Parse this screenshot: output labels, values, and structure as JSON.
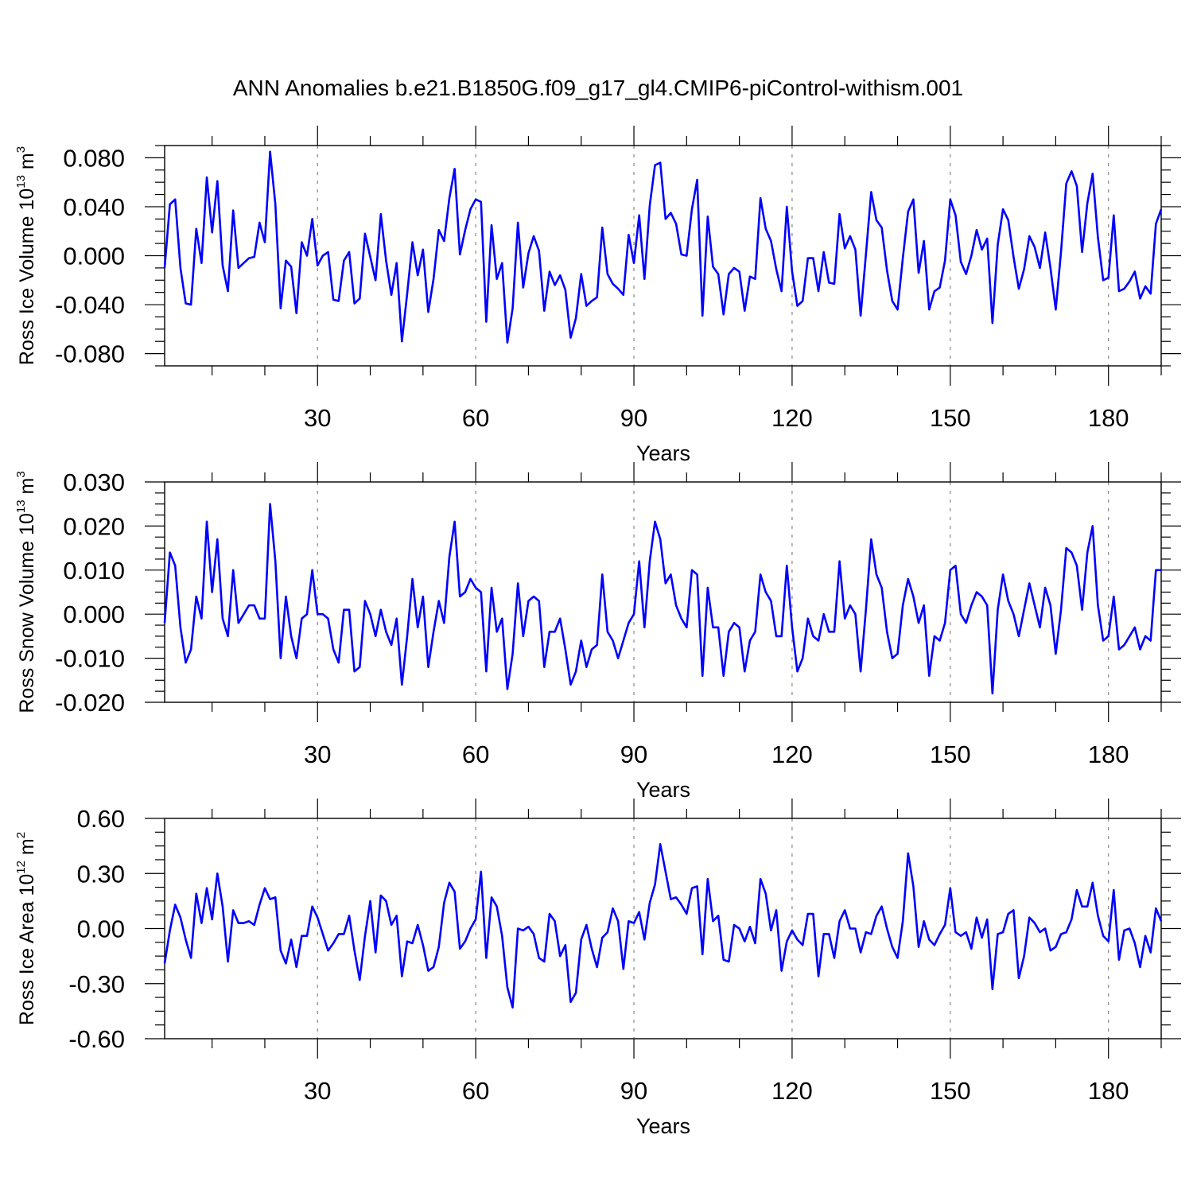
{
  "title": "ANN Anomalies b.e21.B1850G.f09_g17_gl4.CMIP6-piControl-withism.001",
  "colors": {
    "line": "#0000ff",
    "axis": "#000000",
    "grid": "#888888",
    "background": "#ffffff"
  },
  "chart_data": [
    {
      "type": "line",
      "ylabel": {
        "text": "Ross Ice Volume 10",
        "exp": "13",
        "unit": " m",
        "unit_exp": "3"
      },
      "xlabel": "Years",
      "xlim": [
        1,
        190
      ],
      "ylim": [
        -0.09,
        0.09
      ],
      "xticks": [
        30,
        60,
        90,
        120,
        150,
        180
      ],
      "xtick_labels": [
        "30",
        "60",
        "90",
        "120",
        "150",
        "180"
      ],
      "yticks": [
        -0.08,
        -0.04,
        0.0,
        0.04,
        0.08
      ],
      "ytick_labels": [
        "-0.080",
        "-0.040",
        "0.000",
        "0.040",
        "0.080"
      ],
      "grid": "vertical dashed at x ticks",
      "series": [
        {
          "name": "Ross Ice Volume",
          "values": [
            -0.01,
            0.042,
            0.046,
            -0.01,
            -0.039,
            -0.04,
            0.022,
            -0.006,
            0.064,
            0.019,
            0.061,
            -0.008,
            -0.029,
            0.037,
            -0.01,
            -0.006,
            -0.002,
            -0.001,
            0.027,
            0.011,
            0.085,
            0.042,
            -0.043,
            -0.004,
            -0.009,
            -0.047,
            0.011,
            0.0,
            0.03,
            -0.008,
            0.0,
            0.003,
            -0.036,
            -0.037,
            -0.004,
            0.003,
            -0.039,
            -0.035,
            0.018,
            -0.001,
            -0.02,
            0.034,
            -0.004,
            -0.032,
            -0.006,
            -0.07,
            -0.031,
            0.011,
            -0.016,
            0.005,
            -0.046,
            -0.019,
            0.021,
            0.012,
            0.047,
            0.071,
            0.001,
            0.021,
            0.038,
            0.046,
            0.044,
            -0.054,
            0.025,
            -0.019,
            -0.006,
            -0.071,
            -0.043,
            0.027,
            -0.026,
            0.002,
            0.016,
            0.004,
            -0.045,
            -0.013,
            -0.024,
            -0.016,
            -0.028,
            -0.067,
            -0.051,
            -0.015,
            -0.041,
            -0.037,
            -0.034,
            0.023,
            -0.015,
            -0.023,
            -0.027,
            -0.032,
            0.017,
            -0.006,
            0.033,
            -0.019,
            0.041,
            0.074,
            0.076,
            0.03,
            0.035,
            0.026,
            0.001,
            0.0,
            0.038,
            0.062,
            -0.049,
            0.032,
            -0.009,
            -0.015,
            -0.048,
            -0.015,
            -0.01,
            -0.013,
            -0.045,
            -0.017,
            -0.019,
            0.047,
            0.022,
            0.012,
            -0.011,
            -0.029,
            0.04,
            -0.013,
            -0.041,
            -0.037,
            -0.002,
            -0.002,
            -0.029,
            0.003,
            -0.022,
            -0.023,
            0.034,
            0.006,
            0.016,
            0.005,
            -0.049,
            0.001,
            0.052,
            0.029,
            0.023,
            -0.012,
            -0.037,
            -0.044,
            -0.002,
            0.036,
            0.046,
            -0.014,
            0.012,
            -0.044,
            -0.029,
            -0.026,
            -0.004,
            0.046,
            0.033,
            -0.005,
            -0.015,
            0.0,
            0.021,
            0.005,
            0.014,
            -0.055,
            0.009,
            0.038,
            0.029,
            -0.001,
            -0.027,
            -0.011,
            0.016,
            0.007,
            -0.01,
            0.019,
            -0.01,
            -0.044,
            0.003,
            0.059,
            0.069,
            0.057,
            0.003,
            0.043,
            0.067,
            0.015,
            -0.02,
            -0.018,
            0.033,
            -0.029,
            -0.027,
            -0.021,
            -0.013,
            -0.035,
            -0.025,
            -0.031,
            0.026,
            0.038
          ]
        }
      ]
    },
    {
      "type": "line",
      "ylabel": {
        "text": "Ross Snow Volume 10",
        "exp": "13",
        "unit": " m",
        "unit_exp": "3"
      },
      "xlabel": "Years",
      "xlim": [
        1,
        190
      ],
      "ylim": [
        -0.02,
        0.03
      ],
      "xticks": [
        30,
        60,
        90,
        120,
        150,
        180
      ],
      "xtick_labels": [
        "30",
        "60",
        "90",
        "120",
        "150",
        "180"
      ],
      "yticks": [
        -0.02,
        -0.01,
        0.0,
        0.01,
        0.02,
        0.03
      ],
      "ytick_labels": [
        "-0.020",
        "-0.010",
        "0.000",
        "0.010",
        "0.020",
        "0.030"
      ],
      "grid": "vertical dashed at x ticks",
      "series": [
        {
          "name": "Ross Snow Volume",
          "values": [
            -0.002,
            0.014,
            0.011,
            -0.003,
            -0.011,
            -0.008,
            0.004,
            -0.001,
            0.021,
            0.005,
            0.017,
            -0.001,
            -0.005,
            0.01,
            -0.002,
            0.0,
            0.002,
            0.002,
            -0.001,
            -0.001,
            0.025,
            0.012,
            -0.01,
            0.004,
            -0.005,
            -0.01,
            -0.001,
            0.0,
            0.01,
            0.0,
            0.0,
            -0.001,
            -0.008,
            -0.011,
            0.001,
            0.001,
            -0.013,
            -0.012,
            0.003,
            0.0,
            -0.005,
            0.001,
            -0.004,
            -0.007,
            -0.001,
            -0.016,
            -0.005,
            0.008,
            -0.003,
            0.004,
            -0.012,
            -0.004,
            0.003,
            -0.002,
            0.013,
            0.021,
            0.004,
            0.005,
            0.008,
            0.006,
            0.005,
            -0.013,
            0.006,
            -0.004,
            -0.001,
            -0.017,
            -0.009,
            0.007,
            -0.005,
            0.003,
            0.004,
            0.003,
            -0.012,
            -0.004,
            -0.004,
            -0.001,
            -0.008,
            -0.016,
            -0.013,
            -0.006,
            -0.012,
            -0.008,
            -0.007,
            0.009,
            -0.004,
            -0.006,
            -0.01,
            -0.006,
            -0.002,
            0.0,
            0.012,
            -0.003,
            0.012,
            0.021,
            0.017,
            0.007,
            0.009,
            0.002,
            -0.001,
            -0.003,
            0.01,
            0.009,
            -0.014,
            0.006,
            -0.003,
            -0.003,
            -0.014,
            -0.004,
            -0.002,
            -0.003,
            -0.013,
            -0.006,
            -0.004,
            0.009,
            0.005,
            0.003,
            -0.005,
            -0.005,
            0.011,
            -0.003,
            -0.013,
            -0.01,
            -0.001,
            -0.005,
            -0.006,
            0.0,
            -0.004,
            -0.004,
            0.012,
            -0.001,
            0.002,
            0.0,
            -0.013,
            0.001,
            0.017,
            0.009,
            0.006,
            -0.004,
            -0.01,
            -0.009,
            0.002,
            0.008,
            0.004,
            -0.002,
            0.002,
            -0.014,
            -0.005,
            -0.006,
            -0.002,
            0.01,
            0.011,
            0.0,
            -0.002,
            0.002,
            0.005,
            0.004,
            0.002,
            -0.018,
            0.001,
            0.009,
            0.003,
            0.0,
            -0.005,
            0.001,
            0.007,
            0.002,
            -0.003,
            0.006,
            0.002,
            -0.009,
            0.001,
            0.015,
            0.014,
            0.011,
            0.001,
            0.014,
            0.02,
            0.002,
            -0.006,
            -0.005,
            0.004,
            -0.008,
            -0.007,
            -0.005,
            -0.003,
            -0.008,
            -0.005,
            -0.006,
            0.01,
            0.01
          ]
        }
      ]
    },
    {
      "type": "line",
      "ylabel": {
        "text": "Ross Ice Area 10",
        "exp": "12",
        "unit": " m",
        "unit_exp": "2"
      },
      "xlabel": "Years",
      "xlim": [
        1,
        190
      ],
      "ylim": [
        -0.6,
        0.6
      ],
      "xticks": [
        30,
        60,
        90,
        120,
        150,
        180
      ],
      "xtick_labels": [
        "30",
        "60",
        "90",
        "120",
        "150",
        "180"
      ],
      "yticks": [
        -0.6,
        -0.3,
        0.0,
        0.3,
        0.6
      ],
      "ytick_labels": [
        "-0.60",
        "-0.30",
        "0.00",
        "0.30",
        "0.60"
      ],
      "grid": "vertical dashed at x ticks",
      "series": [
        {
          "name": "Ross Ice Area",
          "values": [
            -0.19,
            -0.01,
            0.13,
            0.06,
            -0.06,
            -0.16,
            0.19,
            0.03,
            0.22,
            0.05,
            0.3,
            0.12,
            -0.18,
            0.1,
            0.03,
            0.03,
            0.04,
            0.02,
            0.13,
            0.22,
            0.16,
            0.17,
            -0.12,
            -0.19,
            -0.06,
            -0.21,
            -0.04,
            -0.04,
            0.12,
            0.06,
            -0.03,
            -0.12,
            -0.08,
            -0.03,
            -0.03,
            0.07,
            -0.12,
            -0.28,
            -0.04,
            0.15,
            -0.13,
            0.18,
            0.15,
            0.02,
            0.07,
            -0.26,
            -0.07,
            -0.08,
            0.02,
            -0.09,
            -0.23,
            -0.21,
            -0.1,
            0.14,
            0.25,
            0.2,
            -0.11,
            -0.07,
            0.0,
            0.05,
            0.31,
            -0.16,
            0.17,
            0.12,
            -0.04,
            -0.32,
            -0.43,
            0.0,
            -0.01,
            0.01,
            -0.03,
            -0.16,
            -0.18,
            0.08,
            0.04,
            -0.15,
            -0.09,
            -0.4,
            -0.35,
            -0.06,
            0.02,
            -0.11,
            -0.21,
            -0.05,
            -0.02,
            0.11,
            0.04,
            -0.22,
            0.04,
            0.03,
            0.09,
            -0.06,
            0.14,
            0.24,
            0.46,
            0.31,
            0.16,
            0.17,
            0.13,
            0.08,
            0.22,
            0.23,
            -0.14,
            0.27,
            0.04,
            0.07,
            -0.17,
            -0.18,
            0.02,
            0.0,
            -0.07,
            0.01,
            -0.08,
            0.27,
            0.19,
            -0.01,
            0.1,
            -0.23,
            -0.07,
            -0.01,
            -0.06,
            -0.09,
            0.08,
            0.08,
            -0.26,
            -0.03,
            -0.03,
            -0.16,
            0.04,
            0.1,
            0.0,
            0.0,
            -0.13,
            -0.02,
            -0.03,
            0.07,
            0.12,
            0.0,
            -0.1,
            -0.16,
            0.04,
            0.41,
            0.23,
            -0.1,
            0.04,
            -0.06,
            -0.09,
            -0.03,
            0.02,
            0.22,
            -0.02,
            -0.04,
            -0.02,
            -0.11,
            0.06,
            -0.05,
            0.05,
            -0.33,
            -0.03,
            -0.02,
            0.08,
            0.1,
            -0.27,
            -0.15,
            0.06,
            0.03,
            -0.02,
            0.0,
            -0.12,
            -0.1,
            -0.03,
            -0.02,
            0.05,
            0.21,
            0.12,
            0.12,
            0.25,
            0.07,
            -0.04,
            -0.07,
            0.21,
            -0.17,
            -0.01,
            0.0,
            -0.08,
            -0.21,
            -0.04,
            -0.13,
            0.11,
            0.04
          ]
        }
      ]
    }
  ]
}
